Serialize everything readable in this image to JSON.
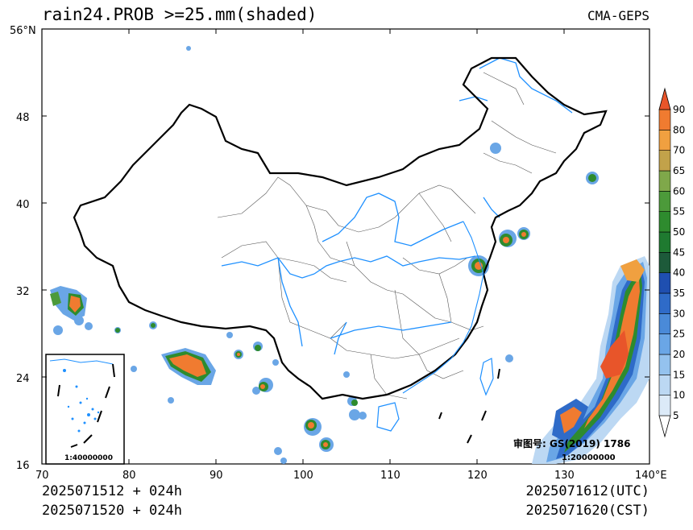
{
  "header": {
    "title": "rain24.PROB >=25.mm(shaded)",
    "model": "CMA-GEPS"
  },
  "map": {
    "lat_labels": [
      "56°N",
      "48",
      "40",
      "32",
      "24",
      "16"
    ],
    "lon_labels": [
      "70",
      "80",
      "90",
      "100",
      "110",
      "120",
      "130",
      "140°E"
    ],
    "approval": "审图号: GS(2019) 1786",
    "scale": "1:20000000",
    "inset_scale": "1:40000000",
    "colors": {
      "border": "#000000",
      "rivers": "#1e90ff",
      "provinces": "#555555"
    }
  },
  "colorbar": {
    "labels": [
      "5",
      "10",
      "15",
      "20",
      "25",
      "30",
      "35",
      "40",
      "45",
      "50",
      "55",
      "60",
      "65",
      "70",
      "80",
      "90"
    ],
    "colors": [
      "#ffffff",
      "#dceaf8",
      "#bcd8f3",
      "#94c2ee",
      "#6aa6e6",
      "#4a8ad8",
      "#2f6bc8",
      "#1f4fb0",
      "#1d5a3a",
      "#1f7a30",
      "#2e8b2e",
      "#4c9a3a",
      "#7fa84a",
      "#c2a24a",
      "#f0a040",
      "#f07b30",
      "#e8552a"
    ]
  },
  "footer": {
    "left_1": "2025071512 + 024h",
    "left_2": "2025071520 + 024h",
    "right_1": "2025071612(UTC)",
    "right_2": "2025071620(CST)"
  }
}
